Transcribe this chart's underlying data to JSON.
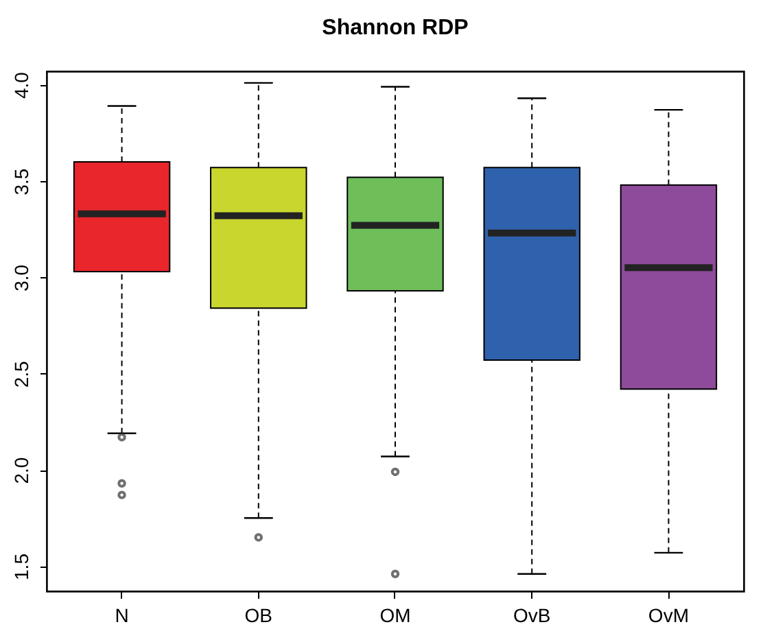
{
  "chart_data": {
    "type": "box",
    "title": "Shannon RDP",
    "categories": [
      "N",
      "OB",
      "OM",
      "OvB",
      "OvM"
    ],
    "colors": [
      "#e8262b",
      "#c8d62e",
      "#6ebe5a",
      "#2f62ad",
      "#8e4a9b"
    ],
    "boxes": [
      {
        "low": 2.19,
        "q1": 3.03,
        "median": 3.33,
        "q3": 3.6,
        "high": 3.89,
        "outliers": [
          2.17,
          1.93,
          1.87
        ]
      },
      {
        "low": 1.75,
        "q1": 2.84,
        "median": 3.32,
        "q3": 3.57,
        "high": 4.01,
        "outliers": [
          1.65
        ]
      },
      {
        "low": 2.07,
        "q1": 2.93,
        "median": 3.27,
        "q3": 3.52,
        "high": 3.99,
        "outliers": [
          1.99,
          1.46
        ]
      },
      {
        "low": 1.46,
        "q1": 2.57,
        "median": 3.23,
        "q3": 3.57,
        "high": 3.93
      },
      {
        "low": 1.57,
        "q1": 2.42,
        "median": 3.05,
        "q3": 3.48,
        "high": 3.87
      }
    ],
    "ylim": [
      1.37,
      4.07
    ],
    "yticks": [
      1.5,
      {
        "value": 2,
        "label": "2.0"
      },
      2.5,
      {
        "value": 3,
        "label": "3.0"
      },
      3.5,
      {
        "value": 4,
        "label": "4.0"
      }
    ],
    "grid": false,
    "legend": false
  }
}
